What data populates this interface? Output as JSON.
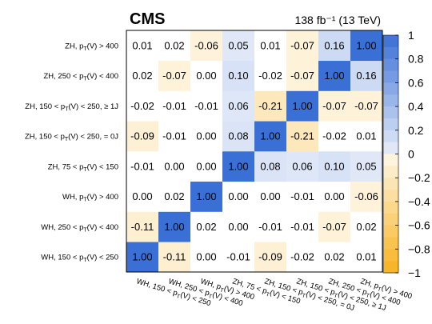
{
  "chart_data": {
    "type": "heatmap",
    "title": "CMS",
    "annotation": "138 fb⁻¹ (13 TeV)",
    "labels": [
      "WH, 150 < p_T(V) < 250",
      "WH, 250 < p_T(V) < 400",
      "WH, p_T(V) > 400",
      "ZH, 75 < p_T(V) < 150",
      "ZH, 150 < p_T(V) < 250, = 0J",
      "ZH, 150 < p_T(V) < 250, ≥ 1J",
      "ZH, 250 < p_T(V) < 400",
      "ZH, p_T(V) > 400"
    ],
    "matrix": [
      [
        1.0,
        -0.11,
        -0.0,
        -0.01,
        -0.09,
        -0.02,
        0.02,
        0.01
      ],
      [
        -0.11,
        1.0,
        0.02,
        0.0,
        -0.01,
        -0.01,
        -0.07,
        0.02
      ],
      [
        -0.0,
        0.02,
        1.0,
        -0.0,
        0.0,
        -0.01,
        -0.0,
        -0.06
      ],
      [
        -0.01,
        0.0,
        -0.0,
        1.0,
        0.08,
        0.06,
        0.1,
        0.05
      ],
      [
        -0.09,
        -0.01,
        0.0,
        0.08,
        1.0,
        -0.21,
        -0.02,
        0.01
      ],
      [
        -0.02,
        -0.01,
        -0.01,
        0.06,
        -0.21,
        1.0,
        -0.07,
        -0.07
      ],
      [
        0.02,
        -0.07,
        -0.0,
        0.1,
        -0.02,
        -0.07,
        1.0,
        0.16
      ],
      [
        0.01,
        0.02,
        -0.06,
        0.05,
        0.01,
        -0.07,
        0.16,
        1.0
      ]
    ],
    "colorbar": {
      "range": [
        -1,
        1
      ],
      "ticks": [
        "1",
        "0.8",
        "0.6",
        "0.4",
        "0.2",
        "0",
        "−0.2",
        "−0.4",
        "−0.6",
        "−0.8",
        "−1"
      ],
      "positive_color": "#1f5bd0",
      "negative_color": "#f6a800"
    }
  }
}
